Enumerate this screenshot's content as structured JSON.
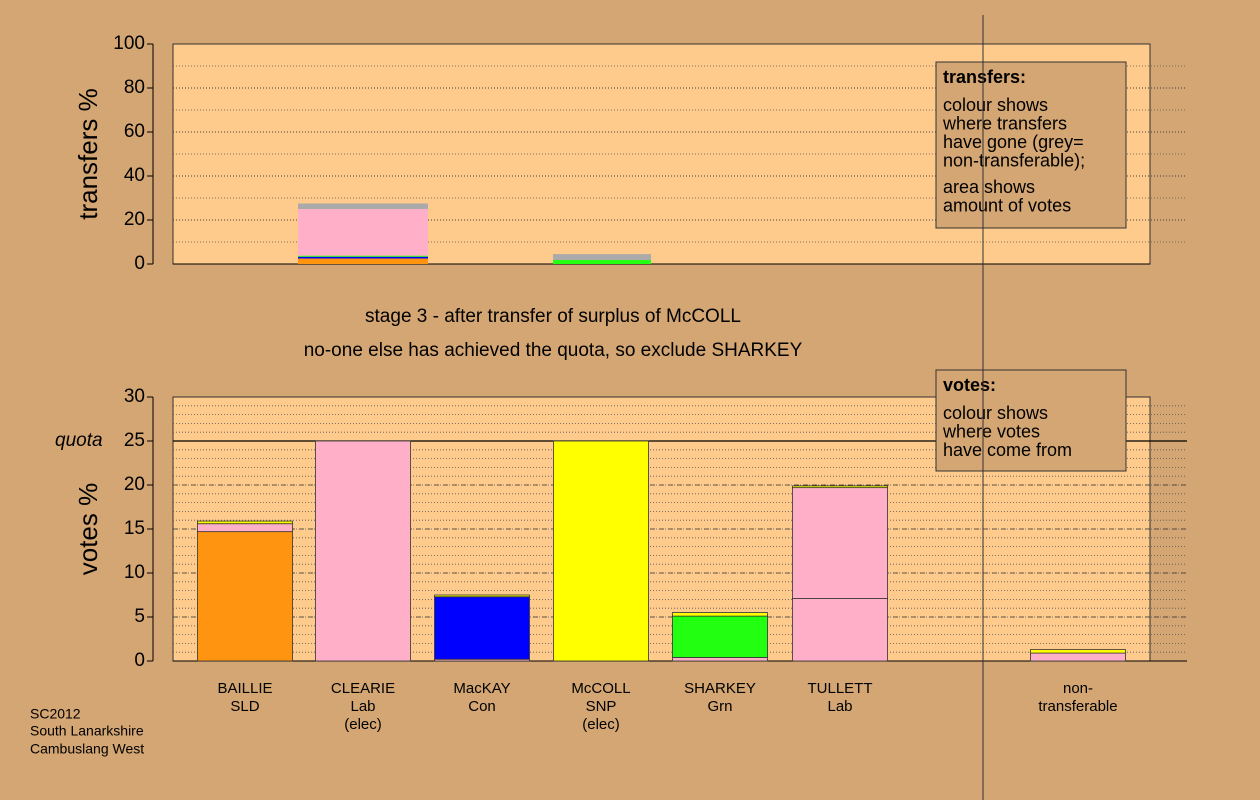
{
  "chart_data": [
    {
      "type": "bar",
      "stacked": true,
      "ylabel": "transfers %",
      "ylim": [
        0,
        100
      ],
      "yticks": [
        0,
        20,
        40,
        60,
        80,
        100
      ],
      "grid": true,
      "minor_grid": 10,
      "categories": [
        null,
        null
      ],
      "series": [
        {
          "color": "#ff9410",
          "values": [
            2.5,
            0
          ]
        },
        {
          "color": "#0000ff",
          "values": [
            0.8,
            0
          ]
        },
        {
          "color": "#22ff11",
          "values": [
            0.5,
            1.8
          ]
        },
        {
          "color": "#ffb0c8",
          "values": [
            21.2,
            0
          ]
        },
        {
          "color": "#aaaaaa",
          "values": [
            2.5,
            2.7
          ]
        }
      ],
      "legend": {
        "title": "transfers:",
        "paragraphs": [
          [
            "colour shows",
            "where transfers",
            "have gone (grey=",
            "non-transferable);"
          ],
          [
            "area shows",
            "amount of votes"
          ]
        ]
      }
    },
    {
      "type": "bar",
      "stacked": true,
      "ylabel": "votes %",
      "ylim": [
        0,
        30
      ],
      "yticks": [
        0,
        5,
        10,
        15,
        20,
        25,
        30
      ],
      "grid": true,
      "minor_grid": 1,
      "quota": {
        "value": 25,
        "label": "quota"
      },
      "categories": [
        [
          "BAILLIE",
          "SLD"
        ],
        [
          "CLEARIE",
          "Lab",
          "(elec)"
        ],
        [
          "MacKAY",
          "Con"
        ],
        [
          "McCOLL",
          "SNP",
          "(elec)"
        ],
        [
          "SHARKEY",
          "Grn"
        ],
        [
          "TULLETT",
          "Lab"
        ],
        [
          "non-",
          "transferable"
        ]
      ],
      "series": [
        {
          "color": "#ff9410",
          "values": [
            14.7,
            0,
            0,
            0,
            0,
            0,
            0
          ]
        },
        {
          "color": "#ffb0c8",
          "values": [
            0.9,
            25,
            0.2,
            0,
            0.4,
            7.1,
            0.9
          ]
        },
        {
          "color": "#0000ff",
          "values": [
            0,
            0,
            7.1,
            0,
            0,
            0,
            0
          ]
        },
        {
          "color": "#22ff11",
          "values": [
            0,
            0,
            0,
            0,
            4.7,
            0,
            0
          ]
        },
        {
          "color": "#ffb0c8",
          "values": [
            0,
            0,
            0,
            0,
            0,
            12.6,
            0
          ]
        },
        {
          "color": "#ffff00",
          "values": [
            0.3,
            0,
            0.2,
            25,
            0.4,
            0.2,
            0.4
          ]
        }
      ],
      "legend": {
        "title": "votes:",
        "paragraphs": [
          [
            "colour shows",
            "where votes",
            "have come from"
          ]
        ]
      }
    }
  ],
  "notes": [
    "stage 3 - after transfer of surplus of McCOLL",
    "no-one else has achieved the quota, so exclude SHARKEY"
  ],
  "footer": [
    "SC2012",
    "South Lanarkshire",
    "Cambuslang West"
  ]
}
